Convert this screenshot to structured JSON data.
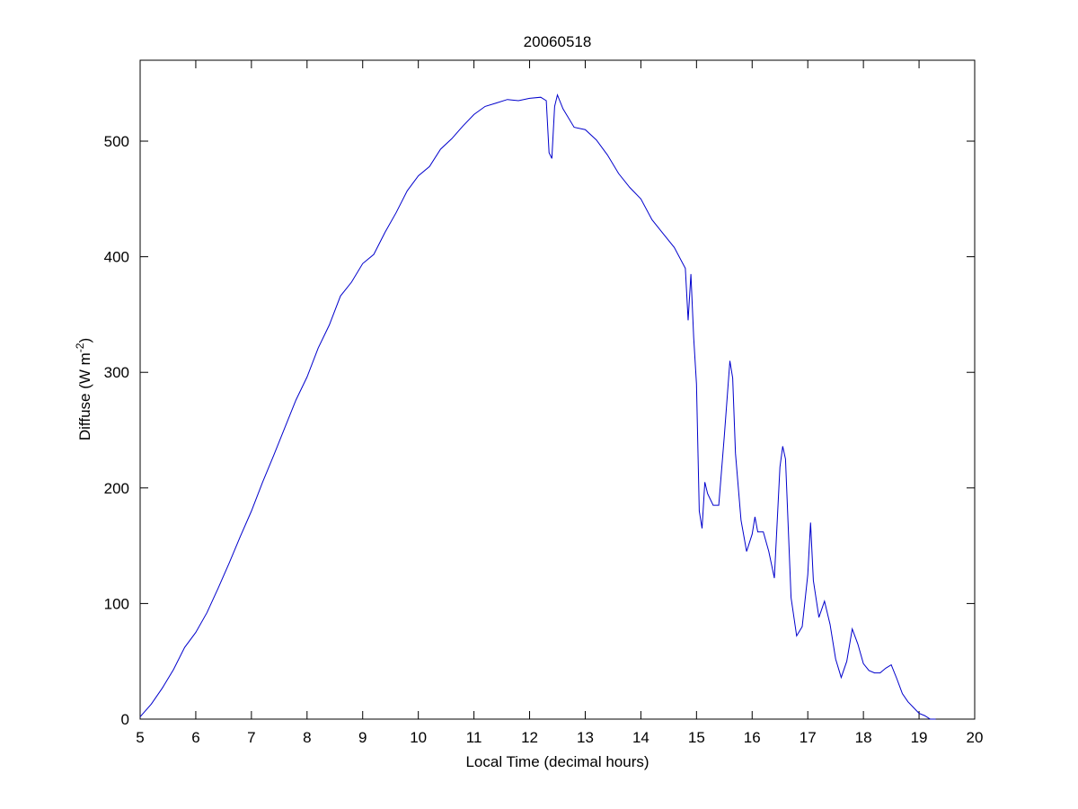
{
  "chart_data": {
    "type": "line",
    "title": "20060518",
    "xlabel": "Local Time (decimal hours)",
    "ylabel": {
      "main": "Diffuse (W m",
      "sup": "-2",
      "end": ")"
    },
    "xlim": [
      5,
      20
    ],
    "ylim": [
      0,
      570
    ],
    "xticks": [
      5,
      6,
      7,
      8,
      9,
      10,
      11,
      12,
      13,
      14,
      15,
      16,
      17,
      18,
      19,
      20
    ],
    "yticks": [
      0,
      100,
      200,
      300,
      400,
      500
    ],
    "grid": false,
    "line_color": "#0000cc",
    "series": [
      {
        "x": [
          5.0,
          5.2,
          5.4,
          5.6,
          5.8,
          6.0,
          6.2,
          6.4,
          6.6,
          6.8,
          7.0,
          7.2,
          7.4,
          7.6,
          7.8,
          8.0,
          8.2,
          8.4,
          8.6,
          8.8,
          9.0,
          9.2,
          9.4,
          9.6,
          9.8,
          10.0,
          10.2,
          10.4,
          10.6,
          10.8,
          11.0,
          11.2,
          11.4,
          11.6,
          11.8,
          12.0,
          12.2,
          12.3,
          12.35,
          12.4,
          12.45,
          12.5,
          12.6,
          12.8,
          13.0,
          13.2,
          13.4,
          13.6,
          13.8,
          14.0,
          14.2,
          14.4,
          14.6,
          14.8,
          14.85,
          14.9,
          14.95,
          15.0,
          15.05,
          15.1,
          15.15,
          15.2,
          15.3,
          15.4,
          15.5,
          15.6,
          15.65,
          15.7,
          15.8,
          15.9,
          16.0,
          16.05,
          16.1,
          16.2,
          16.3,
          16.4,
          16.5,
          16.55,
          16.6,
          16.7,
          16.8,
          16.9,
          17.0,
          17.05,
          17.1,
          17.2,
          17.3,
          17.4,
          17.5,
          17.6,
          17.7,
          17.8,
          17.9,
          18.0,
          18.1,
          18.2,
          18.3,
          18.4,
          18.5,
          18.6,
          18.7,
          18.8,
          18.9,
          19.0,
          19.1,
          19.2,
          19.3
        ],
        "y": [
          2,
          13,
          27,
          43,
          62,
          75,
          92,
          113,
          135,
          158,
          180,
          205,
          228,
          252,
          276,
          296,
          321,
          341,
          366,
          378,
          394,
          402,
          421,
          438,
          457,
          470,
          478,
          493,
          502,
          513,
          523,
          530,
          533,
          536,
          535,
          537,
          538,
          535,
          490,
          485,
          530,
          540,
          528,
          512,
          510,
          501,
          488,
          472,
          460,
          450,
          432,
          420,
          408,
          390,
          345,
          385,
          330,
          290,
          180,
          165,
          205,
          195,
          185,
          185,
          245,
          310,
          295,
          230,
          172,
          145,
          160,
          175,
          162,
          162,
          145,
          122,
          218,
          236,
          225,
          105,
          72,
          80,
          125,
          170,
          120,
          88,
          102,
          82,
          52,
          36,
          50,
          78,
          65,
          48,
          42,
          40,
          40,
          44,
          47,
          35,
          22,
          15,
          10,
          5,
          3,
          0,
          0
        ]
      }
    ]
  }
}
